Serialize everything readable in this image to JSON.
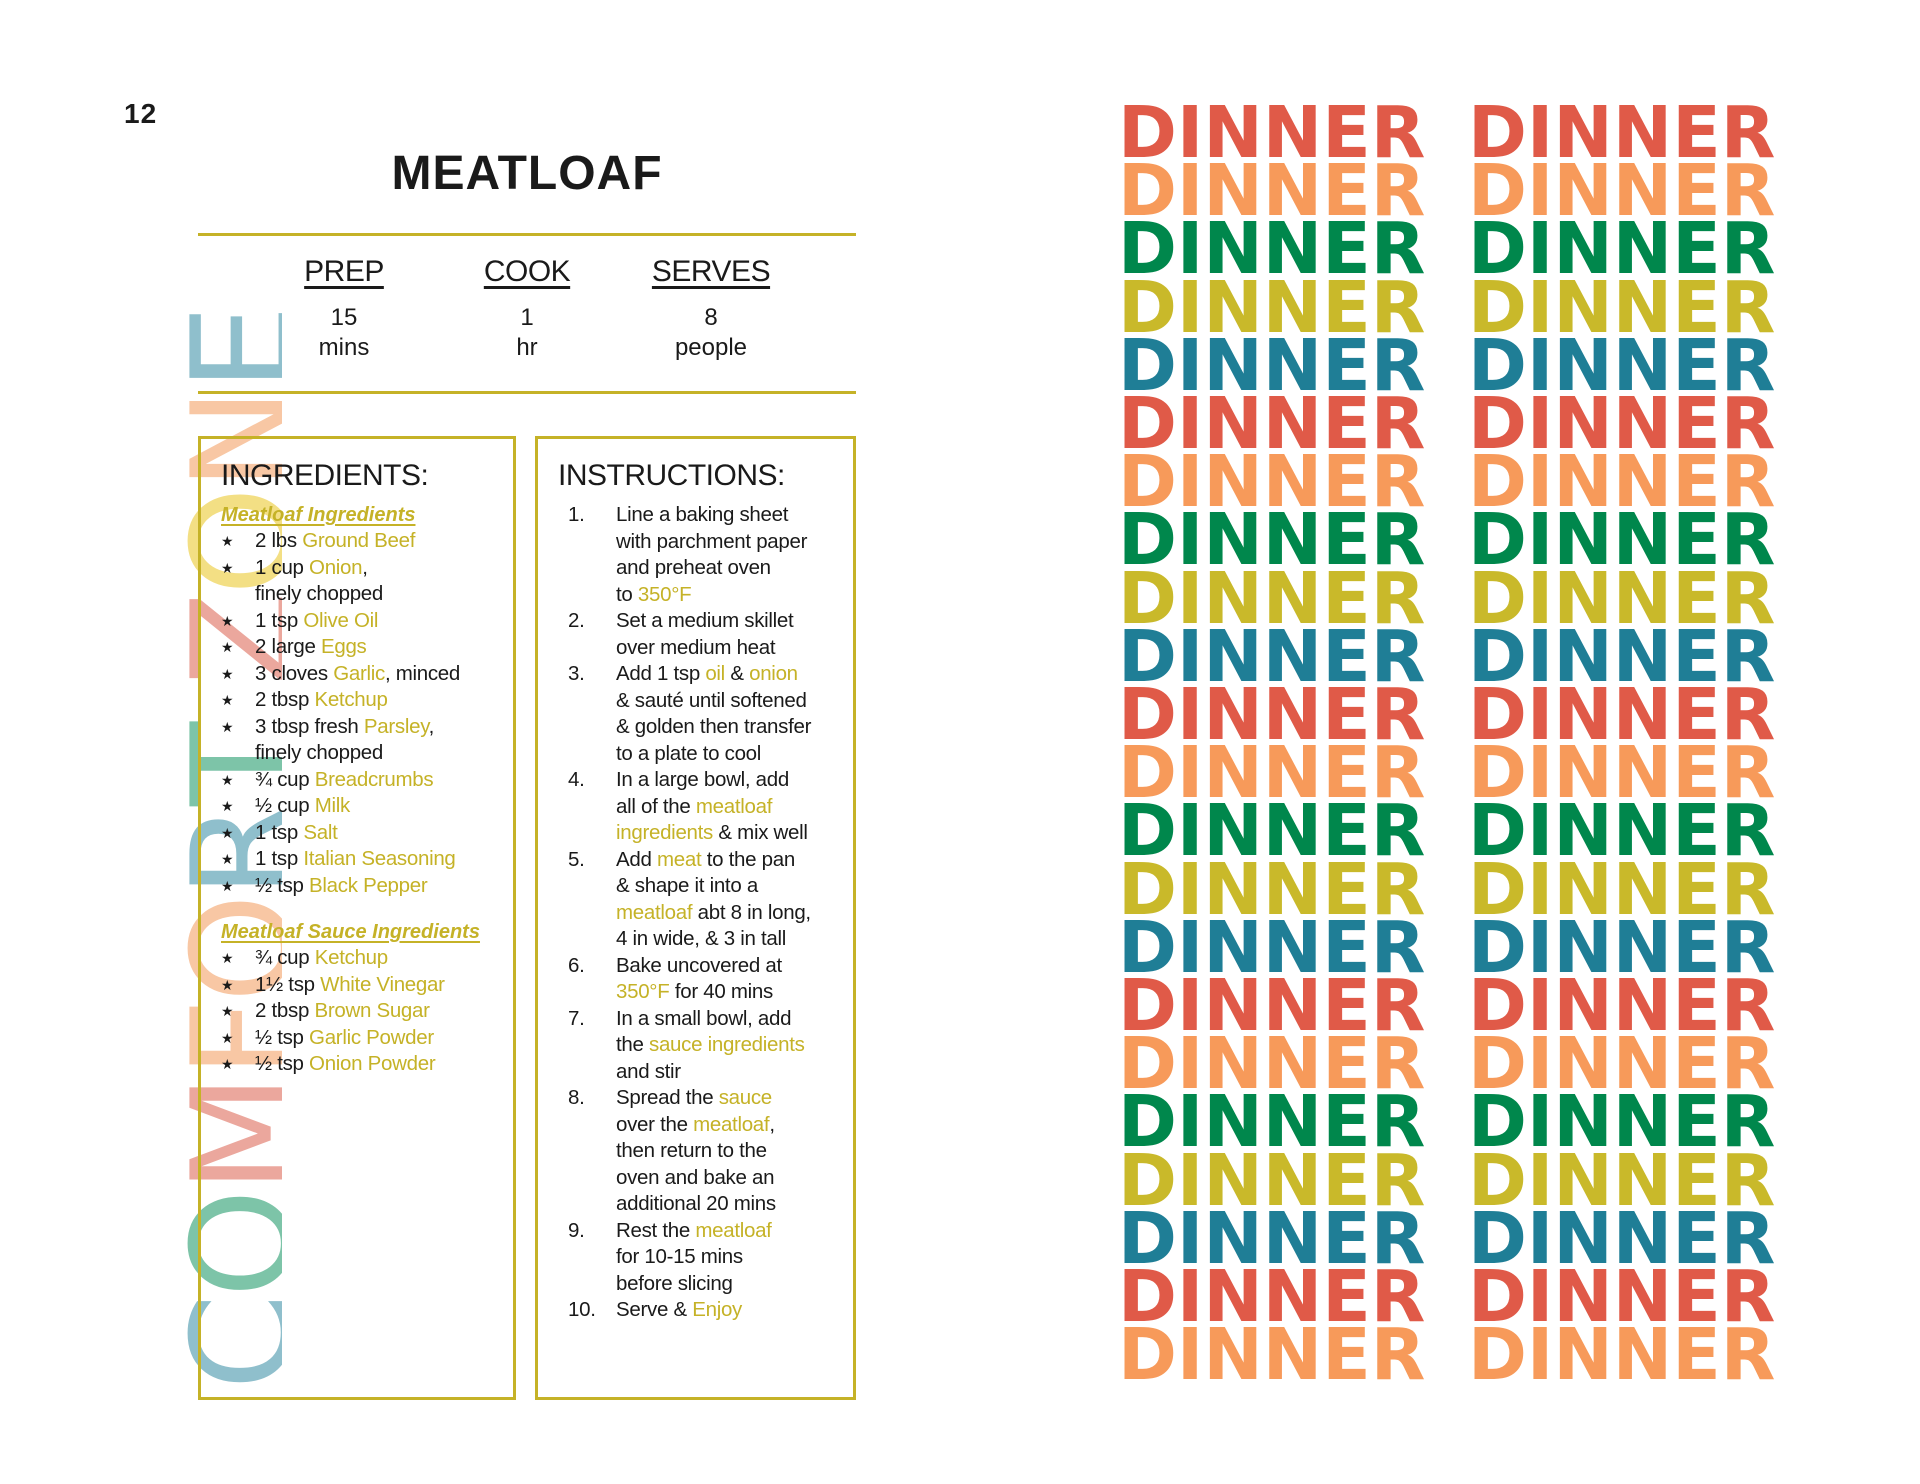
{
  "page_number": "12",
  "side_title": {
    "letters": [
      {
        "char": "C",
        "color": "#8fbfcc"
      },
      {
        "char": "O",
        "color": "#7dc4a8"
      },
      {
        "char": "M",
        "color": "#eba79d"
      },
      {
        "char": "F",
        "color": "#f8c7a4"
      },
      {
        "char": "O",
        "color": "#f8c7a4"
      },
      {
        "char": "R",
        "color": "#8fbfcc"
      },
      {
        "char": "T",
        "color": "#7dc4a8"
      },
      {
        "char": " ",
        "color": "#ffffff"
      },
      {
        "char": "Z",
        "color": "#eba79d"
      },
      {
        "char": "O",
        "color": "#f3df84"
      },
      {
        "char": "N",
        "color": "#f8c7a4"
      },
      {
        "char": "E",
        "color": "#8fbfcc"
      }
    ]
  },
  "recipe": {
    "title": "MEATLOAF",
    "stats": [
      {
        "label": "PREP",
        "value1": "15",
        "value2": "mins"
      },
      {
        "label": "COOK",
        "value1": "1",
        "value2": "hr"
      },
      {
        "label": "SERVES",
        "value1": "8",
        "value2": "people"
      }
    ]
  },
  "ingredients": {
    "heading": "INGREDIENTS:",
    "bullet": "★",
    "sections": [
      {
        "title": "Meatloaf Ingredients",
        "items": [
          {
            "lines": [
              [
                {
                  "t": "2 lbs "
                },
                {
                  "t": "Ground Beef",
                  "hl": true
                }
              ]
            ]
          },
          {
            "lines": [
              [
                {
                  "t": "1 cup "
                },
                {
                  "t": "Onion",
                  "hl": true
                },
                {
                  "t": ","
                }
              ],
              [
                {
                  "t": "finely chopped"
                }
              ]
            ]
          },
          {
            "lines": [
              [
                {
                  "t": "1 tsp "
                },
                {
                  "t": "Olive Oil",
                  "hl": true
                }
              ]
            ]
          },
          {
            "lines": [
              [
                {
                  "t": "2 large "
                },
                {
                  "t": "Eggs",
                  "hl": true
                }
              ]
            ]
          },
          {
            "lines": [
              [
                {
                  "t": "3 cloves "
                },
                {
                  "t": "Garlic",
                  "hl": true
                },
                {
                  "t": ", minced"
                }
              ]
            ]
          },
          {
            "lines": [
              [
                {
                  "t": "2 tbsp "
                },
                {
                  "t": "Ketchup",
                  "hl": true
                }
              ]
            ]
          },
          {
            "lines": [
              [
                {
                  "t": "3 tbsp fresh "
                },
                {
                  "t": "Parsley",
                  "hl": true
                },
                {
                  "t": ","
                }
              ],
              [
                {
                  "t": "finely chopped"
                }
              ]
            ]
          },
          {
            "lines": [
              [
                {
                  "t": "¾ cup "
                },
                {
                  "t": "Breadcrumbs",
                  "hl": true
                }
              ]
            ]
          },
          {
            "lines": [
              [
                {
                  "t": "½ cup "
                },
                {
                  "t": "Milk",
                  "hl": true
                }
              ]
            ]
          },
          {
            "lines": [
              [
                {
                  "t": "1 tsp "
                },
                {
                  "t": "Salt",
                  "hl": true
                }
              ]
            ]
          },
          {
            "lines": [
              [
                {
                  "t": "1 tsp "
                },
                {
                  "t": "Italian Seasoning",
                  "hl": true
                }
              ]
            ]
          },
          {
            "lines": [
              [
                {
                  "t": "½ tsp "
                },
                {
                  "t": "Black Pepper",
                  "hl": true
                }
              ]
            ]
          }
        ]
      },
      {
        "title": "Meatloaf Sauce Ingredients",
        "items": [
          {
            "lines": [
              [
                {
                  "t": "¾ cup "
                },
                {
                  "t": "Ketchup",
                  "hl": true
                }
              ]
            ]
          },
          {
            "lines": [
              [
                {
                  "t": "1½ tsp "
                },
                {
                  "t": "White Vinegar",
                  "hl": true
                }
              ]
            ]
          },
          {
            "lines": [
              [
                {
                  "t": "2 tbsp "
                },
                {
                  "t": "Brown Sugar",
                  "hl": true
                }
              ]
            ]
          },
          {
            "lines": [
              [
                {
                  "t": "½ tsp "
                },
                {
                  "t": "Garlic Powder",
                  "hl": true
                }
              ]
            ]
          },
          {
            "lines": [
              [
                {
                  "t": "½ tsp "
                },
                {
                  "t": "Onion Powder",
                  "hl": true
                }
              ]
            ]
          }
        ]
      }
    ]
  },
  "instructions": {
    "heading": "INSTRUCTIONS:",
    "steps": [
      {
        "num": "1.",
        "lines": [
          [
            {
              "t": "Line a baking sheet"
            }
          ],
          [
            {
              "t": "with parchment paper"
            }
          ],
          [
            {
              "t": "and preheat oven"
            }
          ],
          [
            {
              "t": "to "
            },
            {
              "t": "350°F",
              "hl": true
            }
          ]
        ]
      },
      {
        "num": "2.",
        "lines": [
          [
            {
              "t": "Set a medium skillet"
            }
          ],
          [
            {
              "t": "over medium heat"
            }
          ]
        ]
      },
      {
        "num": "3.",
        "lines": [
          [
            {
              "t": "Add 1 tsp "
            },
            {
              "t": "oil",
              "hl": true
            },
            {
              "t": " & "
            },
            {
              "t": "onion",
              "hl": true
            }
          ],
          [
            {
              "t": "& sauté until softened"
            }
          ],
          [
            {
              "t": "& golden then transfer"
            }
          ],
          [
            {
              "t": "to a plate to cool"
            }
          ]
        ]
      },
      {
        "num": "4.",
        "lines": [
          [
            {
              "t": "In a large bowl, add"
            }
          ],
          [
            {
              "t": "all of the "
            },
            {
              "t": "meatloaf",
              "hl": true
            }
          ],
          [
            {
              "t": "ingredients",
              "hl": true
            },
            {
              "t": " & mix well"
            }
          ]
        ]
      },
      {
        "num": "5.",
        "lines": [
          [
            {
              "t": "Add "
            },
            {
              "t": "meat",
              "hl": true
            },
            {
              "t": " to the pan"
            }
          ],
          [
            {
              "t": "& shape it into a"
            }
          ],
          [
            {
              "t": "meatloaf",
              "hl": true
            },
            {
              "t": " abt 8 in long,"
            }
          ],
          [
            {
              "t": "4 in wide, & 3 in tall"
            }
          ]
        ]
      },
      {
        "num": "6.",
        "lines": [
          [
            {
              "t": "Bake uncovered at"
            }
          ],
          [
            {
              "t": "350°F",
              "hl": true
            },
            {
              "t": " for 40 mins"
            }
          ]
        ]
      },
      {
        "num": "7.",
        "lines": [
          [
            {
              "t": "In a small bowl, add"
            }
          ],
          [
            {
              "t": "the "
            },
            {
              "t": "sauce ingredients",
              "hl": true
            }
          ],
          [
            {
              "t": "and stir"
            }
          ]
        ]
      },
      {
        "num": "8.",
        "lines": [
          [
            {
              "t": "Spread the "
            },
            {
              "t": "sauce",
              "hl": true
            }
          ],
          [
            {
              "t": "over the "
            },
            {
              "t": "meatloaf",
              "hl": true
            },
            {
              "t": ","
            }
          ],
          [
            {
              "t": "then return to the"
            }
          ],
          [
            {
              "t": "oven and bake an"
            }
          ],
          [
            {
              "t": "additional 20 mins"
            }
          ]
        ]
      },
      {
        "num": "9.",
        "lines": [
          [
            {
              "t": "Rest the "
            },
            {
              "t": "meatloaf",
              "hl": true
            }
          ],
          [
            {
              "t": "for 10-15 mins"
            }
          ],
          [
            {
              "t": "before slicing"
            }
          ]
        ]
      },
      {
        "num": "10.",
        "lines": [
          [
            {
              "t": "Serve & "
            },
            {
              "t": "Enjoy",
              "hl": true
            }
          ]
        ]
      }
    ]
  },
  "dinner_pattern": {
    "word": "DINNER",
    "columns": 2,
    "row_colors": [
      "#e05a48",
      "#f79a5a",
      "#00874c",
      "#c9b92a",
      "#1f7e96",
      "#e05a48",
      "#f79a5a",
      "#00874c",
      "#c9b92a",
      "#1f7e96",
      "#e05a48",
      "#f79a5a",
      "#00874c",
      "#c9b92a",
      "#1f7e96",
      "#e05a48",
      "#f79a5a",
      "#00874c",
      "#c9b92a",
      "#1f7e96",
      "#e05a48",
      "#f79a5a"
    ]
  },
  "colors": {
    "accent": "#c5b227"
  }
}
